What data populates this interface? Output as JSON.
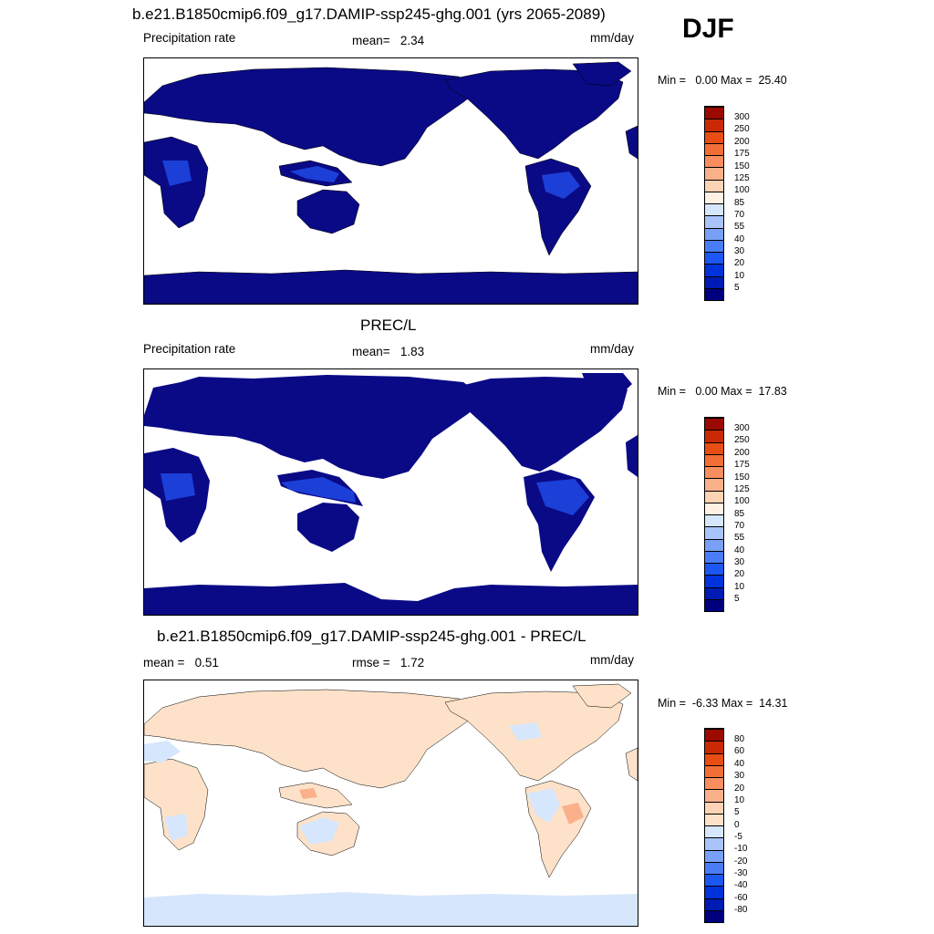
{
  "season": "DJF",
  "panels": [
    {
      "title": "b.e21.B1850cmip6.f09_g17.DAMIP-ssp245-ghg.001 (yrs 2065-2089)",
      "left_label": "Precipitation rate",
      "center_label": "mean=   2.34",
      "units": "mm/day",
      "range_text": "Min =   0.00 Max =  25.40",
      "colorbar_labels": [
        "300",
        "250",
        "200",
        "175",
        "150",
        "125",
        "100",
        "85",
        "70",
        "55",
        "40",
        "30",
        "20",
        "10",
        "5"
      ]
    },
    {
      "title": "PREC/L",
      "left_label": "Precipitation rate",
      "center_label": "mean=   1.83",
      "units": "mm/day",
      "range_text": "Min =   0.00 Max =  17.83",
      "colorbar_labels": [
        "300",
        "250",
        "200",
        "175",
        "150",
        "125",
        "100",
        "85",
        "70",
        "55",
        "40",
        "30",
        "20",
        "10",
        "5"
      ]
    },
    {
      "title": "b.e21.B1850cmip6.f09_g17.DAMIP-ssp245-ghg.001 - PREC/L",
      "left_label": "mean =   0.51",
      "center_label": "rmse =   1.72",
      "units": "mm/day",
      "range_text": "Min =  -6.33 Max =  14.31",
      "colorbar_labels": [
        "80",
        "60",
        "40",
        "30",
        "20",
        "10",
        "5",
        "0",
        "-5",
        "-10",
        "-20",
        "-30",
        "-40",
        "-60",
        "-80"
      ]
    }
  ],
  "chart_data": [
    {
      "type": "heatmap",
      "title": "b.e21.B1850cmip6.f09_g17.DAMIP-ssp245-ghg.001 (yrs 2065-2089)",
      "variable": "Precipitation rate",
      "units": "mm/day",
      "mean": 2.34,
      "min": 0.0,
      "max": 25.4,
      "projection": "cylindrical equidistant, Pacific-centered",
      "colorbar_levels": [
        5,
        10,
        20,
        30,
        40,
        55,
        70,
        85,
        100,
        125,
        150,
        175,
        200,
        250,
        300
      ],
      "colorbar_colors": [
        "#00007f",
        "#001bb3",
        "#0032dc",
        "#1d57f2",
        "#4a7df5",
        "#79a0f7",
        "#a8c4fa",
        "#d6e6fc",
        "#fff1e3",
        "#fcd3b5",
        "#fab08a",
        "#f88e5f",
        "#f36e37",
        "#e84e14",
        "#c92a05",
        "#9a0a00"
      ]
    },
    {
      "type": "heatmap",
      "title": "PREC/L",
      "variable": "Precipitation rate",
      "units": "mm/day",
      "mean": 1.83,
      "min": 0.0,
      "max": 17.83,
      "projection": "cylindrical equidistant, Pacific-centered",
      "colorbar_levels": [
        5,
        10,
        20,
        30,
        40,
        55,
        70,
        85,
        100,
        125,
        150,
        175,
        200,
        250,
        300
      ],
      "colorbar_colors": [
        "#00007f",
        "#001bb3",
        "#0032dc",
        "#1d57f2",
        "#4a7df5",
        "#79a0f7",
        "#a8c4fa",
        "#d6e6fc",
        "#fff1e3",
        "#fcd3b5",
        "#fab08a",
        "#f88e5f",
        "#f36e37",
        "#e84e14",
        "#c92a05",
        "#9a0a00"
      ]
    },
    {
      "type": "heatmap",
      "title": "b.e21.B1850cmip6.f09_g17.DAMIP-ssp245-ghg.001 - PREC/L",
      "units": "mm/day",
      "mean": 0.51,
      "rmse": 1.72,
      "min": -6.33,
      "max": 14.31,
      "projection": "cylindrical equidistant, Pacific-centered",
      "colorbar_levels": [
        -80,
        -60,
        -40,
        -30,
        -20,
        -10,
        -5,
        0,
        5,
        10,
        20,
        30,
        40,
        60,
        80
      ],
      "colorbar_colors": [
        "#00007f",
        "#001bb3",
        "#0032dc",
        "#1d57f2",
        "#4a7df5",
        "#79a0f7",
        "#a8c4fa",
        "#d6e6fc",
        "#fde2c9",
        "#fcd3b5",
        "#fab08a",
        "#f88e5f",
        "#f36e37",
        "#e84e14",
        "#c92a05",
        "#9a0a00"
      ]
    }
  ]
}
